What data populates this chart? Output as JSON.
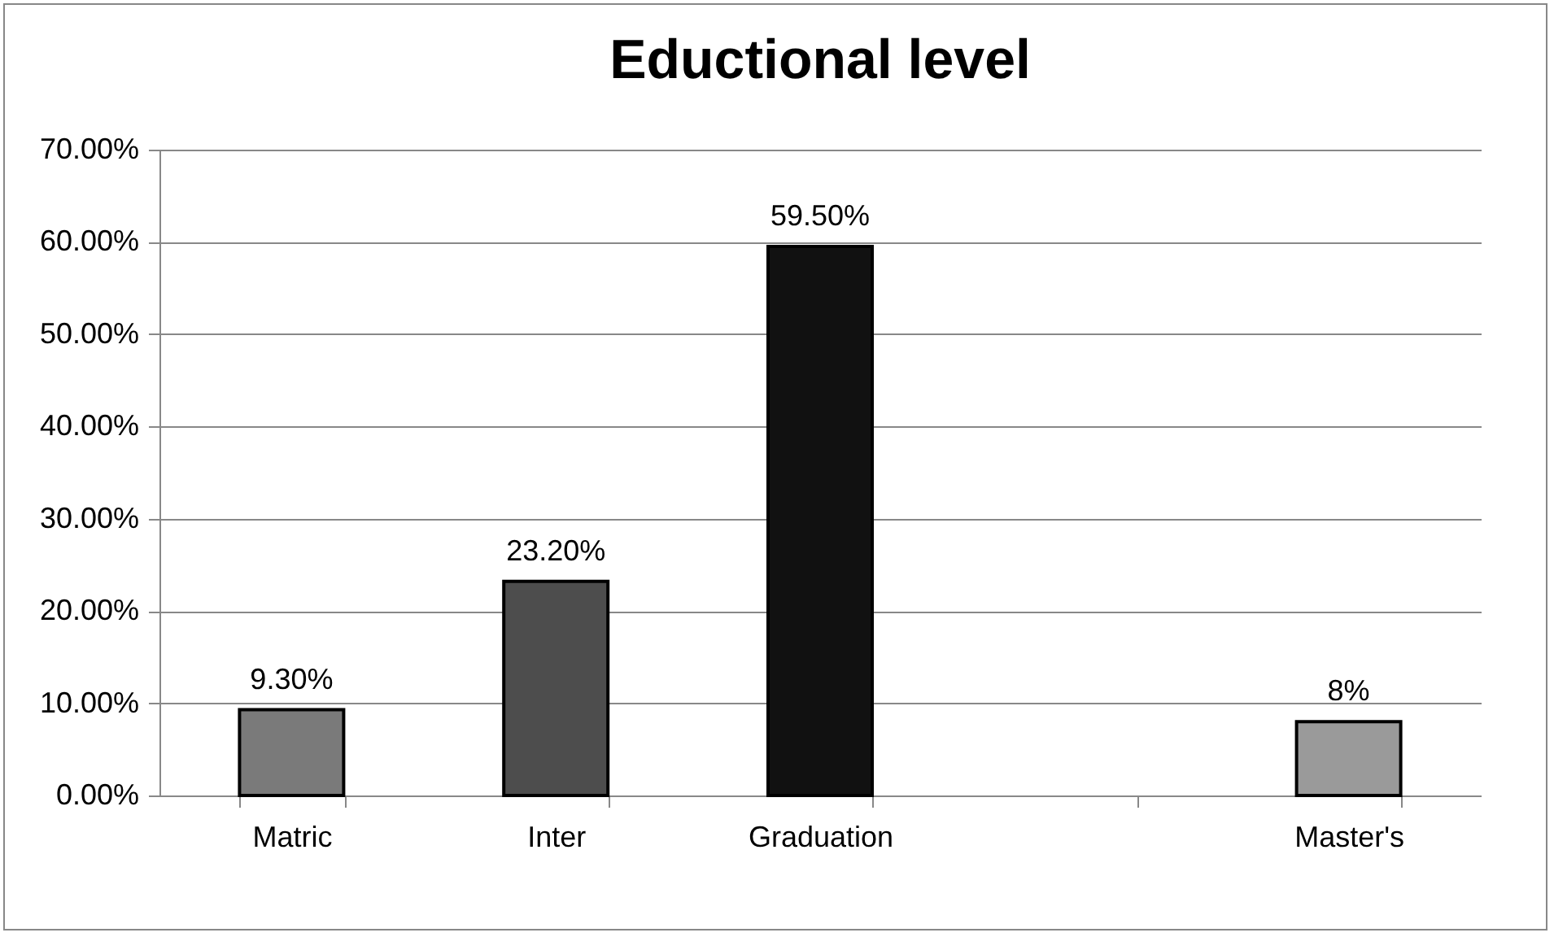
{
  "chart_data": {
    "type": "bar",
    "title": "Eductional level",
    "categories": [
      "Matric",
      "Inter",
      "Graduation",
      null,
      "Master's"
    ],
    "values": [
      9.3,
      23.2,
      59.5,
      null,
      8
    ],
    "colors": [
      "#7a7a7a",
      "#4d4d4d",
      "#111111",
      null,
      "#9a9a9a"
    ],
    "value_labels": [
      "9.30%",
      "23.20%",
      "59.50%",
      null,
      "8%"
    ],
    "ylim": [
      0,
      70
    ],
    "yticks": [
      {
        "value": 0,
        "label": "0.00%"
      },
      {
        "value": 10,
        "label": "10.00%"
      },
      {
        "value": 20,
        "label": "20.00%"
      },
      {
        "value": 30,
        "label": "30.00%"
      },
      {
        "value": 40,
        "label": "40.00%"
      },
      {
        "value": 50,
        "label": "50.00%"
      },
      {
        "value": 60,
        "label": "60.00%"
      },
      {
        "value": 70,
        "label": "70.00%"
      }
    ],
    "grid": "y"
  }
}
